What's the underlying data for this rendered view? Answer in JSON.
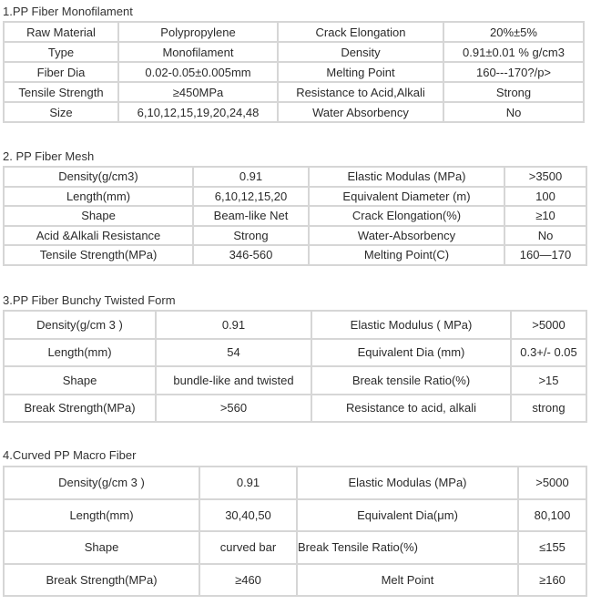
{
  "sections": [
    {
      "title": "1.PP Fiber Monofilament",
      "rows": [
        [
          "Raw Material",
          "Polypropylene",
          "Crack Elongation",
          "20%±5%"
        ],
        [
          "Type",
          "Monofilament",
          "Density",
          "0.91±0.01 % g/cm3"
        ],
        [
          "Fiber Dia",
          "0.02-0.05±0.005mm",
          "Melting Point",
          "160---170?/p>"
        ],
        [
          "Tensile Strength",
          "≥450MPa",
          "Resistance to Acid,Alkali",
          "Strong"
        ],
        [
          "Size",
          "6,10,12,15,19,20,24,48",
          "Water Absorbency",
          "No"
        ]
      ]
    },
    {
      "title": "2. PP Fiber Mesh",
      "rows": [
        [
          "Density(g/cm3)",
          "0.91",
          "Elastic Modulas (MPa)",
          ">3500"
        ],
        [
          "Length(mm)",
          "6,10,12,15,20",
          "Equivalent Diameter (m)",
          "100"
        ],
        [
          "Shape",
          "Beam-like Net",
          "Crack Elongation(%)",
          "≥10"
        ],
        [
          "Acid &Alkali Resistance",
          "Strong",
          "Water-Absorbency",
          "No"
        ],
        [
          "Tensile Strength(MPa)",
          "346-560",
          "Melting Point(C)",
          "160—170"
        ]
      ]
    },
    {
      "title": "3.PP Fiber Bunchy Twisted Form",
      "rows": [
        [
          "Density(g/cm 3 )",
          "0.91",
          "Elastic Modulus ( MPa)",
          ">5000"
        ],
        [
          "Length(mm)",
          "54",
          "Equivalent Dia (mm)",
          "0.3+/- 0.05"
        ],
        [
          "Shape",
          "bundle-like and twisted",
          "Break tensile Ratio(%)",
          ">15"
        ],
        [
          "Break Strength(MPa)",
          ">560",
          "Resistance to acid, alkali",
          "strong"
        ]
      ]
    },
    {
      "title": "4.Curved PP Macro  Fiber",
      "rows": [
        [
          "Density(g/cm 3 )",
          "0.91",
          "Elastic Modulas (MPa)",
          ">5000"
        ],
        [
          "Length(mm)",
          "30,40,50",
          "Equivalent Dia(μm)",
          "80,100"
        ],
        [
          "Shape",
          "curved bar",
          "Break Tensile Ratio(%)",
          "≤155"
        ],
        [
          "Break Strength(MPa)",
          "≥460",
          "Melt Point",
          "≥160"
        ]
      ]
    }
  ]
}
